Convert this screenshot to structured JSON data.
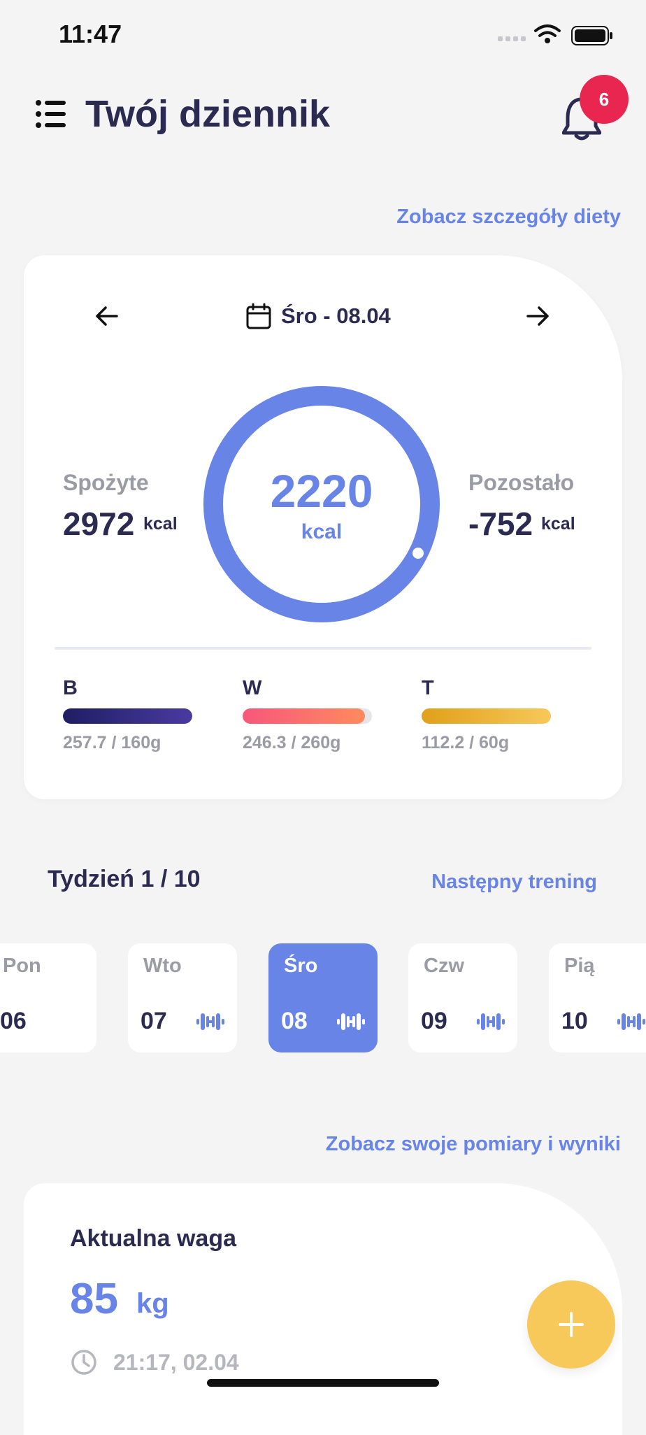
{
  "status_bar": {
    "time": "11:47"
  },
  "header": {
    "title": "Twój dziennik",
    "notifications_count": "6"
  },
  "links": {
    "diet_details": "Zobacz szczegóły diety",
    "next_training": "Następny trening",
    "measurements": "Zobacz swoje pomiary i wyniki"
  },
  "diet_card": {
    "date": "Śro - 08.04",
    "calories_target": "2220",
    "calories_unit": "kcal",
    "eaten": {
      "label": "Spożyte",
      "value": "2972",
      "unit": "kcal"
    },
    "remaining": {
      "label": "Pozostało",
      "value": "-752",
      "unit": "kcal"
    },
    "ring_color": "#6784e6",
    "macros": [
      {
        "letter": "B",
        "text": "257.7 / 160g",
        "fill_fraction": 1.0,
        "colors": [
          "#1f1e63",
          "#4a3aa0"
        ]
      },
      {
        "letter": "W",
        "text": "246.3 / 260g",
        "fill_fraction": 0.947,
        "colors": [
          "#f7577b",
          "#ff8a5e"
        ]
      },
      {
        "letter": "T",
        "text": "112.2 / 60g",
        "fill_fraction": 1.0,
        "colors": [
          "#e0a01a",
          "#f7c85a"
        ]
      }
    ]
  },
  "week": {
    "title": "Tydzień 1 / 10",
    "days": [
      {
        "name": "Pon",
        "num": "06",
        "training": false,
        "active": false
      },
      {
        "name": "Wto",
        "num": "07",
        "training": true,
        "active": false
      },
      {
        "name": "Śro",
        "num": "08",
        "training": true,
        "active": true
      },
      {
        "name": "Czw",
        "num": "09",
        "training": true,
        "active": false
      },
      {
        "name": "Pią",
        "num": "10",
        "training": true,
        "active": false
      }
    ]
  },
  "weight_card": {
    "title": "Aktualna waga",
    "value": "85",
    "unit": "kg",
    "timestamp": "21:17, 02.04"
  },
  "icons": {
    "menu": "menu-icon",
    "bell": "bell-icon",
    "arrow_left": "arrow-left-icon",
    "arrow_right": "arrow-right-icon",
    "calendar": "calendar-icon",
    "dumbbell": "dumbbell-icon",
    "clock": "clock-icon",
    "plus": "plus-icon"
  },
  "colors": {
    "accent": "#6784e6",
    "badge": "#e8264f",
    "fab": "#f7c85a",
    "text": "#2b2b52"
  }
}
